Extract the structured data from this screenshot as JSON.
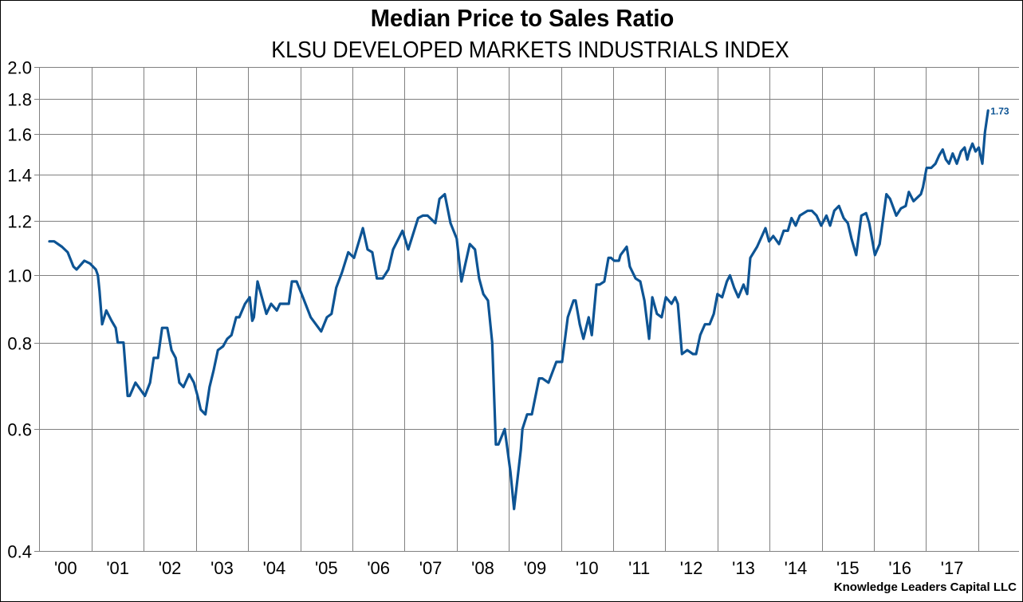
{
  "chart_data": {
    "type": "line",
    "title": "Median Price to Sales Ratio",
    "subtitle": "KLSU DEVELOPED MARKETS INDUSTRIALS INDEX",
    "source": "Knowledge Leaders Capital LLC",
    "xlabel": "",
    "ylabel": "",
    "yscale": "log",
    "ylim": [
      0.4,
      2.0
    ],
    "xlim": [
      2000.0,
      2018.5
    ],
    "grid": true,
    "legend": "none",
    "yticks": [
      0.4,
      0.6,
      0.8,
      1.0,
      1.2,
      1.4,
      1.6,
      1.8,
      2.0
    ],
    "ytick_labels": [
      "0.4",
      "0.6",
      "0.8",
      "1.0",
      "1.2",
      "1.4",
      "1.6",
      "1.8",
      "2.0"
    ],
    "xgrid_years": [
      2001,
      2002,
      2003,
      2004,
      2005,
      2006,
      2007,
      2008,
      2009,
      2010,
      2011,
      2012,
      2013,
      2014,
      2015,
      2016,
      2017,
      2018
    ],
    "xtick_labels": [
      "'00",
      "'01",
      "'02",
      "'03",
      "'04",
      "'05",
      "'06",
      "'07",
      "'08",
      "'09",
      "'10",
      "'11",
      "'12",
      "'13",
      "'14",
      "'15",
      "'16",
      "'17"
    ],
    "xtick_years": [
      2000,
      2001,
      2002,
      2003,
      2004,
      2005,
      2006,
      2007,
      2008,
      2009,
      2010,
      2011,
      2012,
      2013,
      2014,
      2015,
      2016,
      2017
    ],
    "end_label": "1.73",
    "series": [
      {
        "name": "Median Price to Sales Ratio",
        "color": "#0d5494",
        "points": [
          [
            2000.19,
            1.12
          ],
          [
            2000.28,
            1.12
          ],
          [
            2000.43,
            1.1
          ],
          [
            2000.54,
            1.08
          ],
          [
            2000.65,
            1.03
          ],
          [
            2000.71,
            1.02
          ],
          [
            2000.86,
            1.05
          ],
          [
            2000.97,
            1.04
          ],
          [
            2001.08,
            1.02
          ],
          [
            2001.12,
            1.0
          ],
          [
            2001.15,
            0.95
          ],
          [
            2001.2,
            0.85
          ],
          [
            2001.28,
            0.89
          ],
          [
            2001.38,
            0.86
          ],
          [
            2001.46,
            0.84
          ],
          [
            2001.5,
            0.8
          ],
          [
            2001.61,
            0.8
          ],
          [
            2001.69,
            0.67
          ],
          [
            2001.73,
            0.67
          ],
          [
            2001.84,
            0.7
          ],
          [
            2001.96,
            0.68
          ],
          [
            2002.02,
            0.67
          ],
          [
            2002.12,
            0.7
          ],
          [
            2002.19,
            0.76
          ],
          [
            2002.27,
            0.76
          ],
          [
            2002.35,
            0.84
          ],
          [
            2002.45,
            0.84
          ],
          [
            2002.53,
            0.78
          ],
          [
            2002.61,
            0.76
          ],
          [
            2002.68,
            0.7
          ],
          [
            2002.76,
            0.69
          ],
          [
            2002.87,
            0.72
          ],
          [
            2002.96,
            0.7
          ],
          [
            2003.03,
            0.67
          ],
          [
            2003.09,
            0.64
          ],
          [
            2003.18,
            0.63
          ],
          [
            2003.26,
            0.69
          ],
          [
            2003.34,
            0.73
          ],
          [
            2003.42,
            0.78
          ],
          [
            2003.52,
            0.79
          ],
          [
            2003.6,
            0.81
          ],
          [
            2003.68,
            0.82
          ],
          [
            2003.77,
            0.87
          ],
          [
            2003.83,
            0.87
          ],
          [
            2003.94,
            0.91
          ],
          [
            2004.03,
            0.93
          ],
          [
            2004.08,
            0.86
          ],
          [
            2004.11,
            0.87
          ],
          [
            2004.18,
            0.98
          ],
          [
            2004.35,
            0.88
          ],
          [
            2004.44,
            0.91
          ],
          [
            2004.55,
            0.89
          ],
          [
            2004.61,
            0.91
          ],
          [
            2004.78,
            0.91
          ],
          [
            2004.84,
            0.98
          ],
          [
            2004.93,
            0.98
          ],
          [
            2005.05,
            0.93
          ],
          [
            2005.2,
            0.87
          ],
          [
            2005.4,
            0.83
          ],
          [
            2005.51,
            0.87
          ],
          [
            2005.6,
            0.88
          ],
          [
            2005.69,
            0.96
          ],
          [
            2005.8,
            1.01
          ],
          [
            2005.92,
            1.08
          ],
          [
            2006.03,
            1.06
          ],
          [
            2006.2,
            1.17
          ],
          [
            2006.29,
            1.09
          ],
          [
            2006.38,
            1.08
          ],
          [
            2006.47,
            0.99
          ],
          [
            2006.58,
            0.99
          ],
          [
            2006.69,
            1.02
          ],
          [
            2006.78,
            1.09
          ],
          [
            2006.96,
            1.16
          ],
          [
            2007.07,
            1.09
          ],
          [
            2007.26,
            1.21
          ],
          [
            2007.35,
            1.22
          ],
          [
            2007.44,
            1.22
          ],
          [
            2007.59,
            1.19
          ],
          [
            2007.67,
            1.29
          ],
          [
            2007.77,
            1.31
          ],
          [
            2007.88,
            1.19
          ],
          [
            2008.0,
            1.13
          ],
          [
            2008.09,
            0.98
          ],
          [
            2008.25,
            1.11
          ],
          [
            2008.35,
            1.09
          ],
          [
            2008.43,
            0.99
          ],
          [
            2008.51,
            0.94
          ],
          [
            2008.6,
            0.92
          ],
          [
            2008.68,
            0.8
          ],
          [
            2008.72,
            0.66
          ],
          [
            2008.75,
            0.57
          ],
          [
            2008.8,
            0.57
          ],
          [
            2008.92,
            0.6
          ],
          [
            2009.03,
            0.52
          ],
          [
            2009.1,
            0.46
          ],
          [
            2009.23,
            0.56
          ],
          [
            2009.26,
            0.6
          ],
          [
            2009.35,
            0.63
          ],
          [
            2009.44,
            0.63
          ],
          [
            2009.58,
            0.71
          ],
          [
            2009.64,
            0.71
          ],
          [
            2009.76,
            0.7
          ],
          [
            2009.91,
            0.75
          ],
          [
            2010.02,
            0.75
          ],
          [
            2010.13,
            0.87
          ],
          [
            2010.24,
            0.92
          ],
          [
            2010.28,
            0.92
          ],
          [
            2010.36,
            0.85
          ],
          [
            2010.43,
            0.81
          ],
          [
            2010.53,
            0.87
          ],
          [
            2010.59,
            0.82
          ],
          [
            2010.68,
            0.97
          ],
          [
            2010.74,
            0.97
          ],
          [
            2010.83,
            0.98
          ],
          [
            2010.91,
            1.06
          ],
          [
            2010.96,
            1.06
          ],
          [
            2011.02,
            1.05
          ],
          [
            2011.11,
            1.05
          ],
          [
            2011.14,
            1.07
          ],
          [
            2011.26,
            1.1
          ],
          [
            2011.32,
            1.03
          ],
          [
            2011.43,
            0.99
          ],
          [
            2011.52,
            0.98
          ],
          [
            2011.6,
            0.92
          ],
          [
            2011.69,
            0.81
          ],
          [
            2011.75,
            0.93
          ],
          [
            2011.84,
            0.88
          ],
          [
            2011.93,
            0.87
          ],
          [
            2012.01,
            0.93
          ],
          [
            2012.12,
            0.91
          ],
          [
            2012.19,
            0.93
          ],
          [
            2012.24,
            0.91
          ],
          [
            2012.32,
            0.77
          ],
          [
            2012.42,
            0.78
          ],
          [
            2012.53,
            0.77
          ],
          [
            2012.59,
            0.77
          ],
          [
            2012.67,
            0.82
          ],
          [
            2012.76,
            0.85
          ],
          [
            2012.85,
            0.85
          ],
          [
            2012.93,
            0.88
          ],
          [
            2013.0,
            0.94
          ],
          [
            2013.09,
            0.93
          ],
          [
            2013.18,
            0.98
          ],
          [
            2013.24,
            1.0
          ],
          [
            2013.32,
            0.96
          ],
          [
            2013.4,
            0.93
          ],
          [
            2013.5,
            0.97
          ],
          [
            2013.57,
            0.94
          ],
          [
            2013.63,
            1.06
          ],
          [
            2013.76,
            1.1
          ],
          [
            2013.92,
            1.17
          ],
          [
            2013.99,
            1.12
          ],
          [
            2014.07,
            1.14
          ],
          [
            2014.18,
            1.11
          ],
          [
            2014.27,
            1.16
          ],
          [
            2014.35,
            1.16
          ],
          [
            2014.42,
            1.21
          ],
          [
            2014.5,
            1.18
          ],
          [
            2014.58,
            1.22
          ],
          [
            2014.73,
            1.24
          ],
          [
            2014.81,
            1.24
          ],
          [
            2014.9,
            1.22
          ],
          [
            2014.99,
            1.18
          ],
          [
            2015.09,
            1.22
          ],
          [
            2015.16,
            1.18
          ],
          [
            2015.24,
            1.24
          ],
          [
            2015.33,
            1.26
          ],
          [
            2015.42,
            1.21
          ],
          [
            2015.5,
            1.19
          ],
          [
            2015.57,
            1.13
          ],
          [
            2015.66,
            1.07
          ],
          [
            2015.76,
            1.22
          ],
          [
            2015.85,
            1.23
          ],
          [
            2015.91,
            1.19
          ],
          [
            2016.02,
            1.07
          ],
          [
            2016.11,
            1.11
          ],
          [
            2016.24,
            1.31
          ],
          [
            2016.31,
            1.29
          ],
          [
            2016.43,
            1.22
          ],
          [
            2016.52,
            1.25
          ],
          [
            2016.61,
            1.26
          ],
          [
            2016.67,
            1.32
          ],
          [
            2016.76,
            1.28
          ],
          [
            2016.9,
            1.31
          ],
          [
            2016.94,
            1.34
          ],
          [
            2017.01,
            1.43
          ],
          [
            2017.1,
            1.43
          ],
          [
            2017.18,
            1.45
          ],
          [
            2017.25,
            1.49
          ],
          [
            2017.32,
            1.52
          ],
          [
            2017.38,
            1.47
          ],
          [
            2017.44,
            1.45
          ],
          [
            2017.51,
            1.5
          ],
          [
            2017.59,
            1.45
          ],
          [
            2017.67,
            1.51
          ],
          [
            2017.74,
            1.53
          ],
          [
            2017.79,
            1.47
          ],
          [
            2017.83,
            1.51
          ],
          [
            2017.89,
            1.55
          ],
          [
            2017.95,
            1.51
          ],
          [
            2018.01,
            1.53
          ],
          [
            2018.08,
            1.45
          ],
          [
            2018.13,
            1.61
          ],
          [
            2018.19,
            1.73
          ]
        ]
      }
    ]
  }
}
